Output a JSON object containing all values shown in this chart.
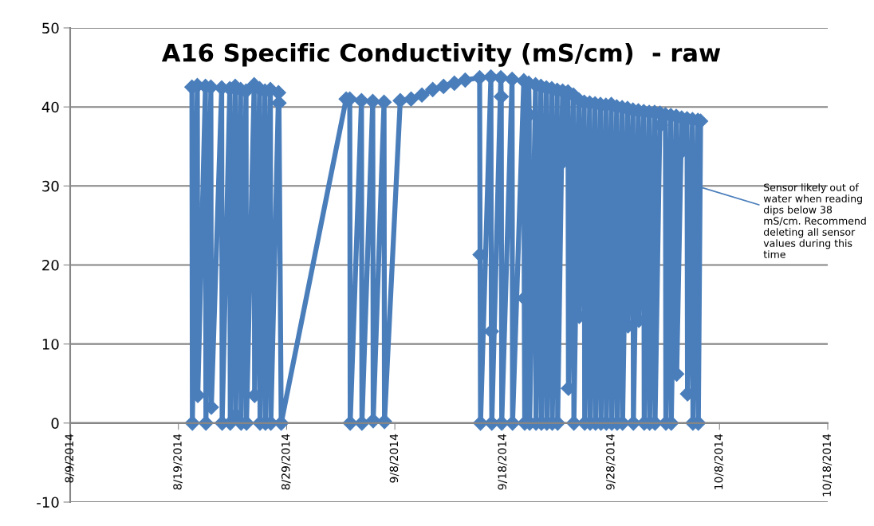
{
  "chart_data": {
    "type": "line",
    "title": "A16 Specific Conductivity (mS/cm)  - raw",
    "xlim": [
      "2014-08-09",
      "2014-10-18"
    ],
    "xticks": [
      {
        "value": "2014-08-09",
        "label": "8/9/2014"
      },
      {
        "value": "2014-08-19",
        "label": "8/19/2014"
      },
      {
        "value": "2014-08-29",
        "label": "8/29/2014"
      },
      {
        "value": "2014-09-08",
        "label": "9/8/2014"
      },
      {
        "value": "2014-09-18",
        "label": "9/18/2014"
      },
      {
        "value": "2014-09-28",
        "label": "9/28/2014"
      },
      {
        "value": "2014-10-08",
        "label": "10/8/2014"
      },
      {
        "value": "2014-10-18",
        "label": "10/18/2014"
      }
    ],
    "ylim": [
      -10,
      50
    ],
    "yticks": [
      -10,
      0,
      10,
      20,
      30,
      40,
      50
    ],
    "grid": "y",
    "marker": "diamond",
    "line_style": "solid",
    "annotations": [
      {
        "text": "Sensor likely out of water when reading dips below 38 mS/cm. Recommend deleting all sensor values during this time",
        "x": "2014-10-05T21:00",
        "y": 30
      }
    ],
    "series": [
      {
        "color": "#4a7ebb",
        "x": [
          "2014-08-20T06:00",
          "2014-08-20T07:00",
          "2014-08-20T18:00",
          "2014-08-20T19:00",
          "2014-08-21T12:00",
          "2014-08-21T13:00",
          "2014-08-22T00:00",
          "2014-08-22T01:00",
          "2014-08-23T00:00",
          "2014-08-23T01:00",
          "2014-08-23T18:00",
          "2014-08-23T19:00",
          "2014-08-24T06:00",
          "2014-08-24T07:00",
          "2014-08-24T18:00",
          "2014-08-24T19:00",
          "2014-08-25T06:00",
          "2014-08-25T07:00",
          "2014-08-26T00:00",
          "2014-08-26T01:00",
          "2014-08-26T12:00",
          "2014-08-26T13:00",
          "2014-08-27T00:00",
          "2014-08-27T01:00",
          "2014-08-27T12:00",
          "2014-08-27T13:00",
          "2014-08-28T06:00",
          "2014-08-28T07:00",
          "2014-08-28T12:00",
          "2014-09-03T12:00",
          "2014-09-03T20:00",
          "2014-09-03T21:00",
          "2014-09-04T22:00",
          "2014-09-04T23:00",
          "2014-09-05T23:00",
          "2014-09-06T00:00",
          "2014-09-07T00:00",
          "2014-09-07T01:00",
          "2014-09-08T12:00",
          "2014-09-09T12:00",
          "2014-09-10T12:00",
          "2014-09-11T12:00",
          "2014-09-12T12:00",
          "2014-09-13T12:00",
          "2014-09-14T12:00",
          "2014-09-15T20:00",
          "2014-09-15T21:00",
          "2014-09-15T22:00",
          "2014-09-16T21:00",
          "2014-09-16T22:00",
          "2014-09-16T23:00",
          "2014-09-17T19:00",
          "2014-09-17T20:00",
          "2014-09-17T21:00",
          "2014-09-18T20:00",
          "2014-09-18T21:00",
          "2014-09-19T22:00",
          "2014-09-19T23:00",
          "2014-09-20T00:00",
          "2014-09-20T09:00",
          "2014-09-20T10:00",
          "2014-09-20T11:00",
          "2014-09-21T00:00",
          "2014-09-21T01:00",
          "2014-09-21T12:00",
          "2014-09-21T13:00",
          "2014-09-22T00:00",
          "2014-09-22T01:00",
          "2014-09-22T12:00",
          "2014-09-22T13:00",
          "2014-09-23T00:00",
          "2014-09-23T01:00",
          "2014-09-23T12:00",
          "2014-09-23T13:00",
          "2014-09-24T00:00",
          "2014-09-24T01:00",
          "2014-09-24T12:00",
          "2014-09-24T13:00",
          "2014-09-25T00:00",
          "2014-09-25T01:00",
          "2014-09-25T12:00",
          "2014-09-25T13:00",
          "2014-09-26T00:00",
          "2014-09-26T01:00",
          "2014-09-26T12:00",
          "2014-09-26T13:00",
          "2014-09-27T00:00",
          "2014-09-27T01:00",
          "2014-09-27T12:00",
          "2014-09-27T13:00",
          "2014-09-28T00:00",
          "2014-09-28T01:00",
          "2014-09-28T12:00",
          "2014-09-28T13:00",
          "2014-09-29T00:00",
          "2014-09-29T01:00",
          "2014-09-29T12:00",
          "2014-09-29T13:00",
          "2014-09-30T00:00",
          "2014-09-30T01:00",
          "2014-09-30T12:00",
          "2014-09-30T13:00",
          "2014-10-01T00:00",
          "2014-10-01T01:00",
          "2014-10-01T12:00",
          "2014-10-01T13:00",
          "2014-10-02T00:00",
          "2014-10-02T01:00",
          "2014-10-02T12:00",
          "2014-10-02T13:00",
          "2014-10-03T00:00",
          "2014-10-03T01:00",
          "2014-10-03T12:00",
          "2014-10-03T13:00",
          "2014-10-04T00:00",
          "2014-10-04T01:00",
          "2014-10-04T12:00",
          "2014-10-04T13:00",
          "2014-10-05T00:00",
          "2014-10-05T01:00",
          "2014-10-05T12:00",
          "2014-10-05T13:00",
          "2014-10-06T00:00",
          "2014-10-06T01:00",
          "2014-10-06T06:00"
        ],
        "values": [
          42.5,
          0,
          42.7,
          3.5,
          42.6,
          0,
          42.5,
          2,
          42.4,
          0,
          42.3,
          0,
          42.6,
          1,
          42.2,
          0,
          42.0,
          0,
          42.8,
          3.5,
          42.3,
          0,
          42.0,
          0,
          42.2,
          0,
          41.8,
          40.5,
          0,
          41.0,
          41.0,
          0,
          40.8,
          0,
          40.7,
          0.3,
          40.6,
          0.2,
          40.8,
          41.0,
          41.5,
          42.2,
          42.6,
          43.0,
          43.4,
          43.7,
          21.3,
          0,
          43.8,
          11.6,
          0,
          43.7,
          41.3,
          0,
          43.5,
          0,
          43.3,
          15.8,
          0,
          43.0,
          39.0,
          0,
          42.8,
          0,
          42.6,
          0,
          42.4,
          0,
          42.3,
          0,
          42.1,
          0,
          42.0,
          33.1,
          41.9,
          4.4,
          41.5,
          0,
          40.9,
          13.5,
          40.6,
          0,
          40.5,
          0,
          40.4,
          0,
          40.3,
          0,
          40.2,
          0,
          40.3,
          0,
          40.0,
          0,
          39.9,
          0,
          39.8,
          12.3,
          39.6,
          0,
          39.5,
          13.0,
          39.4,
          0,
          39.3,
          0,
          39.3,
          0,
          39.2,
          37.7,
          39.0,
          0,
          38.9,
          0,
          38.8,
          6.2,
          38.6,
          34.4,
          38.5,
          3.7,
          38.4,
          0,
          38.3,
          0,
          38.2
        ]
      }
    ]
  }
}
